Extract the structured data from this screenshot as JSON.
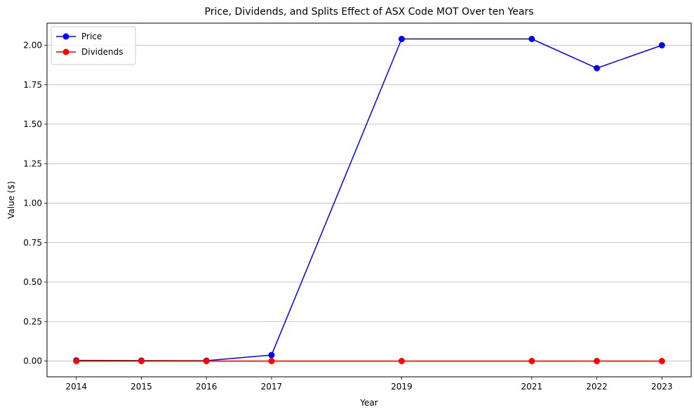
{
  "chart_data": {
    "type": "line",
    "title": "Price, Dividends, and Splits Effect of ASX Code MOT Over ten Years",
    "xlabel": "Year",
    "ylabel": "Value ($)",
    "x": [
      2014,
      2015,
      2016,
      2017,
      2019,
      2021,
      2022,
      2023
    ],
    "x_tick_labels": [
      "2014",
      "2015",
      "2016",
      "2017",
      "2019",
      "2021",
      "2022",
      "2023"
    ],
    "y_tick_values": [
      0.0,
      0.25,
      0.5,
      0.75,
      1.0,
      1.25,
      1.5,
      1.75,
      2.0
    ],
    "y_tick_labels": [
      "0.00",
      "0.25",
      "0.50",
      "0.75",
      "1.00",
      "1.25",
      "1.50",
      "1.75",
      "2.00"
    ],
    "xlim": [
      2013.55,
      2023.45
    ],
    "ylim": [
      -0.1,
      2.14
    ],
    "grid": "horizontal",
    "legend_position": "upper-left",
    "series": [
      {
        "name": "Price",
        "color": "#0000ff",
        "values": [
          0.004,
          0.003,
          0.002,
          0.038,
          2.04,
          2.04,
          1.855,
          2.0
        ]
      },
      {
        "name": "Dividends",
        "color": "#ff0000",
        "values": [
          0.0,
          0.0,
          0.0,
          0.0,
          0.0,
          0.0,
          0.0,
          0.0
        ]
      }
    ]
  }
}
